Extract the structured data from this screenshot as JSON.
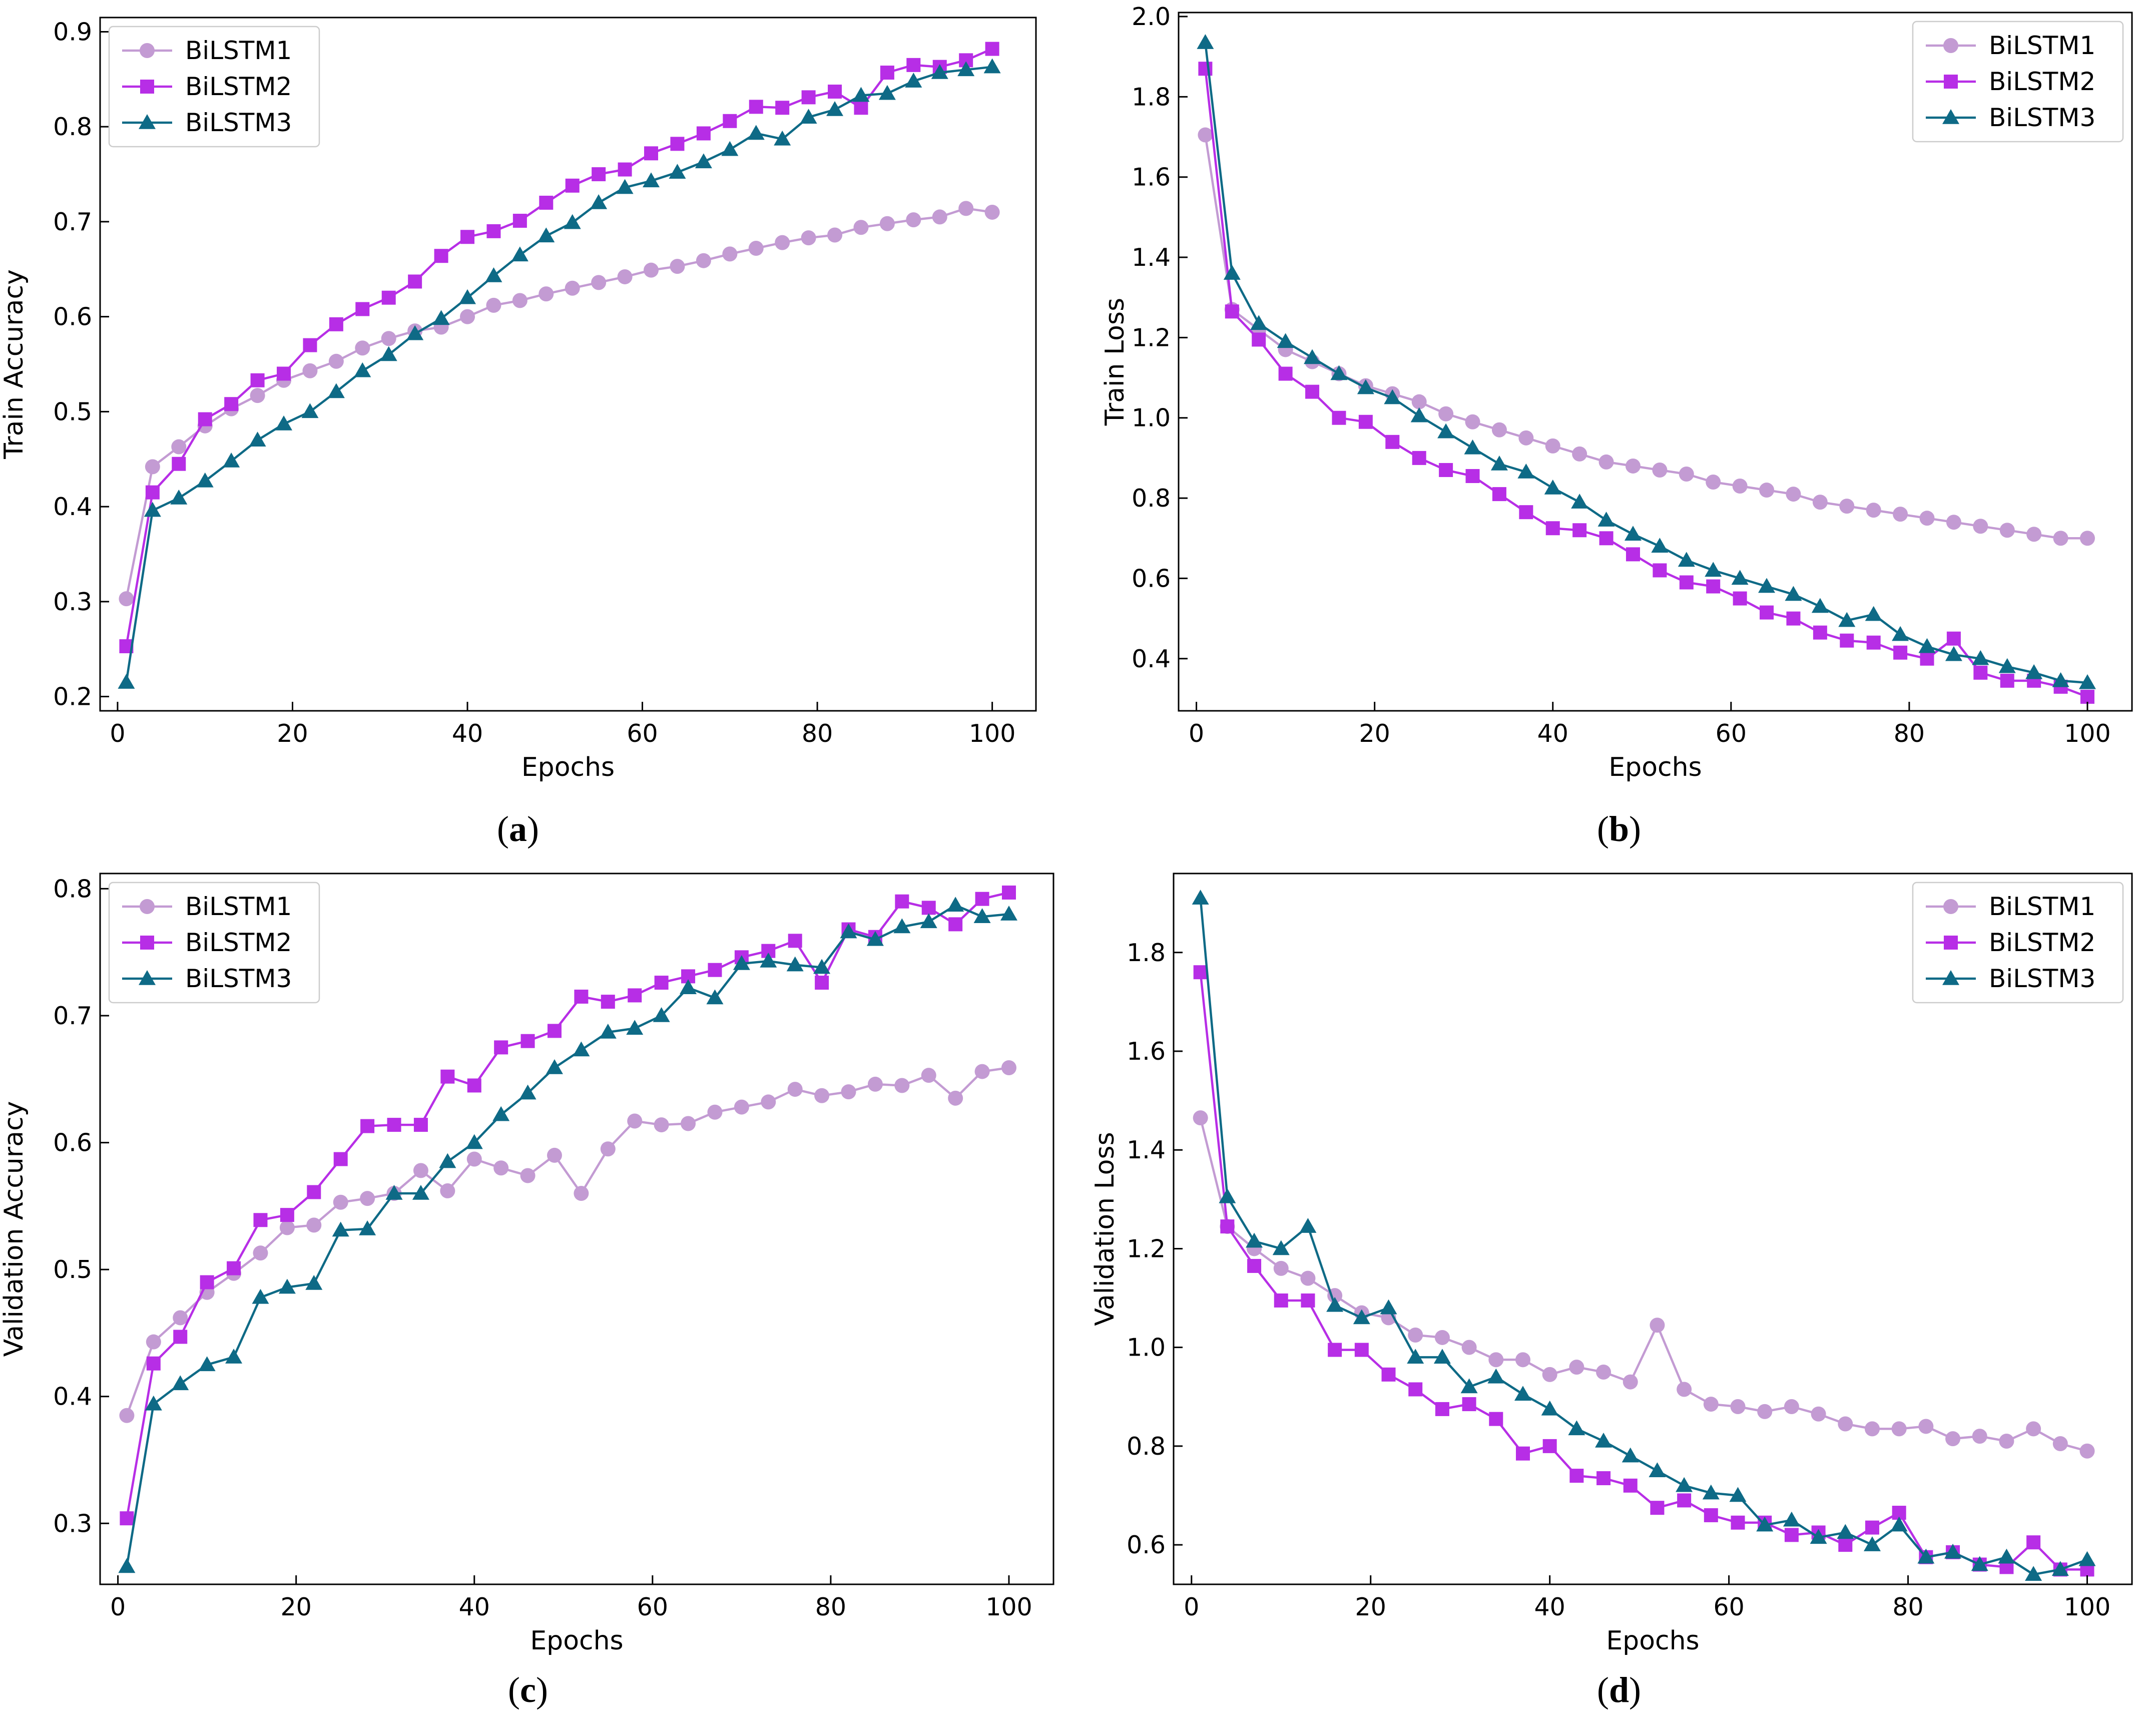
{
  "chart_data": [
    {
      "type": "line",
      "panel": "a",
      "caption": {
        "open": "(",
        "letter": "a",
        "close": ")"
      },
      "title": "",
      "xlabel": "Epochs",
      "ylabel": "Train Accuracy",
      "xlim": [
        -2,
        105
      ],
      "ylim": [
        0.185,
        0.915
      ],
      "xticks": [
        0,
        20,
        40,
        60,
        80,
        100
      ],
      "xtick_labels": [
        "0",
        "20",
        "40",
        "60",
        "80",
        "100"
      ],
      "yticks": [
        0.2,
        0.3,
        0.4,
        0.5,
        0.6,
        0.7,
        0.8,
        0.9
      ],
      "ytick_labels": [
        "0.2",
        "0.3",
        "0.4",
        "0.5",
        "0.6",
        "0.7",
        "0.8",
        "0.9"
      ],
      "legend_position": "top-left",
      "x": [
        1,
        4,
        7,
        10,
        13,
        16,
        19,
        22,
        25,
        28,
        31,
        34,
        37,
        40,
        43,
        46,
        49,
        52,
        55,
        58,
        61,
        64,
        67,
        70,
        73,
        76,
        79,
        82,
        85,
        88,
        91,
        94,
        97,
        100
      ],
      "series": [
        {
          "name": "BiLSTM1",
          "color": "#c39bd3",
          "marker": "circle",
          "values": [
            0.303,
            0.442,
            0.463,
            0.485,
            0.503,
            0.517,
            0.533,
            0.543,
            0.553,
            0.567,
            0.577,
            0.585,
            0.589,
            0.6,
            0.612,
            0.617,
            0.624,
            0.63,
            0.636,
            0.642,
            0.649,
            0.653,
            0.659,
            0.666,
            0.672,
            0.678,
            0.683,
            0.686,
            0.694,
            0.698,
            0.702,
            0.705,
            0.714,
            0.71
          ]
        },
        {
          "name": "BiLSTM2",
          "color": "#b72ee6",
          "marker": "square",
          "values": [
            0.253,
            0.415,
            0.445,
            0.492,
            0.508,
            0.533,
            0.54,
            0.57,
            0.592,
            0.608,
            0.62,
            0.637,
            0.664,
            0.684,
            0.69,
            0.701,
            0.72,
            0.738,
            0.75,
            0.755,
            0.772,
            0.782,
            0.793,
            0.806,
            0.821,
            0.82,
            0.831,
            0.837,
            0.82,
            0.857,
            0.865,
            0.863,
            0.87,
            0.882
          ]
        },
        {
          "name": "BiLSTM3",
          "color": "#0e6a86",
          "marker": "triangle",
          "values": [
            0.215,
            0.396,
            0.409,
            0.427,
            0.448,
            0.47,
            0.487,
            0.5,
            0.521,
            0.543,
            0.56,
            0.582,
            0.598,
            0.62,
            0.643,
            0.665,
            0.685,
            0.699,
            0.72,
            0.736,
            0.743,
            0.752,
            0.763,
            0.776,
            0.793,
            0.787,
            0.81,
            0.818,
            0.833,
            0.835,
            0.848,
            0.857,
            0.86,
            0.863
          ]
        }
      ]
    },
    {
      "type": "line",
      "panel": "b",
      "caption": {
        "open": "(",
        "letter": "b",
        "close": ")"
      },
      "title": "",
      "xlabel": "Epochs",
      "ylabel": "Train Loss",
      "xlim": [
        -2,
        105
      ],
      "ylim": [
        0.27,
        2.01
      ],
      "xticks": [
        0,
        20,
        40,
        60,
        80,
        100
      ],
      "xtick_labels": [
        "0",
        "20",
        "40",
        "60",
        "80",
        "100"
      ],
      "yticks": [
        0.4,
        0.6,
        0.8,
        1.0,
        1.2,
        1.4,
        1.6,
        1.8,
        2.0
      ],
      "ytick_labels": [
        "0.4",
        "0.6",
        "0.8",
        "1.0",
        "1.2",
        "1.4",
        "1.6",
        "1.8",
        "2.0"
      ],
      "legend_position": "top-right",
      "x": [
        1,
        4,
        7,
        10,
        13,
        16,
        19,
        22,
        25,
        28,
        31,
        34,
        37,
        40,
        43,
        46,
        49,
        52,
        55,
        58,
        61,
        64,
        67,
        70,
        73,
        76,
        79,
        82,
        85,
        88,
        91,
        94,
        97,
        100
      ],
      "series": [
        {
          "name": "BiLSTM1",
          "color": "#c39bd3",
          "marker": "circle",
          "values": [
            1.705,
            1.27,
            1.22,
            1.17,
            1.14,
            1.11,
            1.08,
            1.06,
            1.04,
            1.01,
            0.99,
            0.97,
            0.95,
            0.93,
            0.91,
            0.89,
            0.88,
            0.87,
            0.86,
            0.84,
            0.83,
            0.82,
            0.81,
            0.79,
            0.78,
            0.77,
            0.76,
            0.75,
            0.74,
            0.73,
            0.72,
            0.71,
            0.7,
            0.7
          ]
        },
        {
          "name": "BiLSTM2",
          "color": "#b72ee6",
          "marker": "square",
          "values": [
            1.87,
            1.265,
            1.195,
            1.11,
            1.065,
            1.0,
            0.99,
            0.94,
            0.9,
            0.87,
            0.855,
            0.81,
            0.765,
            0.725,
            0.72,
            0.7,
            0.66,
            0.62,
            0.59,
            0.58,
            0.55,
            0.515,
            0.5,
            0.465,
            0.445,
            0.44,
            0.415,
            0.4,
            0.45,
            0.365,
            0.345,
            0.345,
            0.33,
            0.305
          ]
        },
        {
          "name": "BiLSTM3",
          "color": "#0e6a86",
          "marker": "triangle",
          "values": [
            1.935,
            1.36,
            1.235,
            1.19,
            1.15,
            1.11,
            1.075,
            1.05,
            1.005,
            0.965,
            0.925,
            0.885,
            0.865,
            0.825,
            0.79,
            0.745,
            0.71,
            0.68,
            0.645,
            0.62,
            0.6,
            0.58,
            0.56,
            0.53,
            0.495,
            0.51,
            0.46,
            0.43,
            0.41,
            0.4,
            0.38,
            0.365,
            0.345,
            0.34
          ]
        }
      ]
    },
    {
      "type": "line",
      "panel": "c",
      "caption": {
        "open": "(",
        "letter": "c",
        "close": ")"
      },
      "title": "",
      "xlabel": "Epochs",
      "ylabel": "Validation Accuracy",
      "xlim": [
        -2,
        105
      ],
      "ylim": [
        0.252,
        0.812
      ],
      "xticks": [
        0,
        20,
        40,
        60,
        80,
        100
      ],
      "xtick_labels": [
        "0",
        "20",
        "40",
        "60",
        "80",
        "100"
      ],
      "yticks": [
        0.3,
        0.4,
        0.5,
        0.6,
        0.7,
        0.8
      ],
      "ytick_labels": [
        "0.3",
        "0.4",
        "0.5",
        "0.6",
        "0.7",
        "0.8"
      ],
      "legend_position": "top-left",
      "x": [
        1,
        4,
        7,
        10,
        13,
        16,
        19,
        22,
        25,
        28,
        31,
        34,
        37,
        40,
        43,
        46,
        49,
        52,
        55,
        58,
        61,
        64,
        67,
        70,
        73,
        76,
        79,
        82,
        85,
        88,
        91,
        94,
        97,
        100
      ],
      "series": [
        {
          "name": "BiLSTM1",
          "color": "#c39bd3",
          "marker": "circle",
          "values": [
            0.385,
            0.443,
            0.462,
            0.482,
            0.497,
            0.513,
            0.533,
            0.535,
            0.553,
            0.556,
            0.56,
            0.578,
            0.562,
            0.587,
            0.58,
            0.574,
            0.59,
            0.56,
            0.595,
            0.617,
            0.614,
            0.615,
            0.624,
            0.628,
            0.632,
            0.642,
            0.637,
            0.64,
            0.646,
            0.645,
            0.653,
            0.635,
            0.656,
            0.659
          ]
        },
        {
          "name": "BiLSTM2",
          "color": "#b72ee6",
          "marker": "square",
          "values": [
            0.304,
            0.426,
            0.447,
            0.49,
            0.501,
            0.539,
            0.543,
            0.561,
            0.587,
            0.613,
            0.614,
            0.614,
            0.652,
            0.645,
            0.675,
            0.68,
            0.688,
            0.715,
            0.711,
            0.716,
            0.726,
            0.731,
            0.736,
            0.746,
            0.751,
            0.759,
            0.726,
            0.768,
            0.762,
            0.79,
            0.785,
            0.772,
            0.792,
            0.797
          ]
        },
        {
          "name": "BiLSTM3",
          "color": "#0e6a86",
          "marker": "triangle",
          "values": [
            0.266,
            0.394,
            0.41,
            0.425,
            0.431,
            0.478,
            0.486,
            0.489,
            0.531,
            0.532,
            0.56,
            0.56,
            0.585,
            0.6,
            0.622,
            0.639,
            0.659,
            0.673,
            0.687,
            0.69,
            0.7,
            0.722,
            0.714,
            0.741,
            0.743,
            0.74,
            0.738,
            0.766,
            0.76,
            0.77,
            0.774,
            0.787,
            0.778,
            0.78
          ]
        }
      ]
    },
    {
      "type": "line",
      "panel": "d",
      "caption": {
        "open": "(",
        "letter": "d",
        "close": ")"
      },
      "title": "",
      "xlabel": "Epochs",
      "ylabel": "Validation Loss",
      "xlim": [
        -2,
        105
      ],
      "ylim": [
        0.52,
        1.96
      ],
      "xticks": [
        0,
        20,
        40,
        60,
        80,
        100
      ],
      "xtick_labels": [
        "0",
        "20",
        "40",
        "60",
        "80",
        "100"
      ],
      "yticks": [
        0.6,
        0.8,
        1.0,
        1.2,
        1.4,
        1.6,
        1.8
      ],
      "ytick_labels": [
        "0.6",
        "0.8",
        "1.0",
        "1.2",
        "1.4",
        "1.6",
        "1.8"
      ],
      "legend_position": "top-right",
      "x": [
        1,
        4,
        7,
        10,
        13,
        16,
        19,
        22,
        25,
        28,
        31,
        34,
        37,
        40,
        43,
        46,
        49,
        52,
        55,
        58,
        61,
        64,
        67,
        70,
        73,
        76,
        79,
        82,
        85,
        88,
        91,
        94,
        97,
        100
      ],
      "series": [
        {
          "name": "BiLSTM1",
          "color": "#c39bd3",
          "marker": "circle",
          "values": [
            1.465,
            1.245,
            1.2,
            1.16,
            1.14,
            1.105,
            1.07,
            1.06,
            1.025,
            1.02,
            1.0,
            0.975,
            0.975,
            0.945,
            0.96,
            0.95,
            0.93,
            1.045,
            0.915,
            0.885,
            0.88,
            0.87,
            0.88,
            0.865,
            0.845,
            0.835,
            0.835,
            0.84,
            0.815,
            0.82,
            0.81,
            0.835,
            0.805,
            0.79
          ]
        },
        {
          "name": "BiLSTM2",
          "color": "#b72ee6",
          "marker": "square",
          "values": [
            1.76,
            1.245,
            1.165,
            1.095,
            1.095,
            0.995,
            0.995,
            0.945,
            0.915,
            0.875,
            0.885,
            0.855,
            0.785,
            0.8,
            0.74,
            0.735,
            0.72,
            0.675,
            0.69,
            0.66,
            0.645,
            0.645,
            0.62,
            0.625,
            0.6,
            0.635,
            0.665,
            0.575,
            0.585,
            0.56,
            0.555,
            0.605,
            0.55,
            0.55
          ]
        },
        {
          "name": "BiLSTM3",
          "color": "#0e6a86",
          "marker": "triangle",
          "values": [
            1.91,
            1.305,
            1.215,
            1.2,
            1.245,
            1.085,
            1.06,
            1.08,
            0.98,
            0.98,
            0.92,
            0.94,
            0.905,
            0.875,
            0.835,
            0.81,
            0.78,
            0.75,
            0.72,
            0.705,
            0.7,
            0.64,
            0.65,
            0.615,
            0.625,
            0.6,
            0.64,
            0.575,
            0.585,
            0.56,
            0.575,
            0.54,
            0.55,
            0.57
          ]
        }
      ]
    }
  ]
}
